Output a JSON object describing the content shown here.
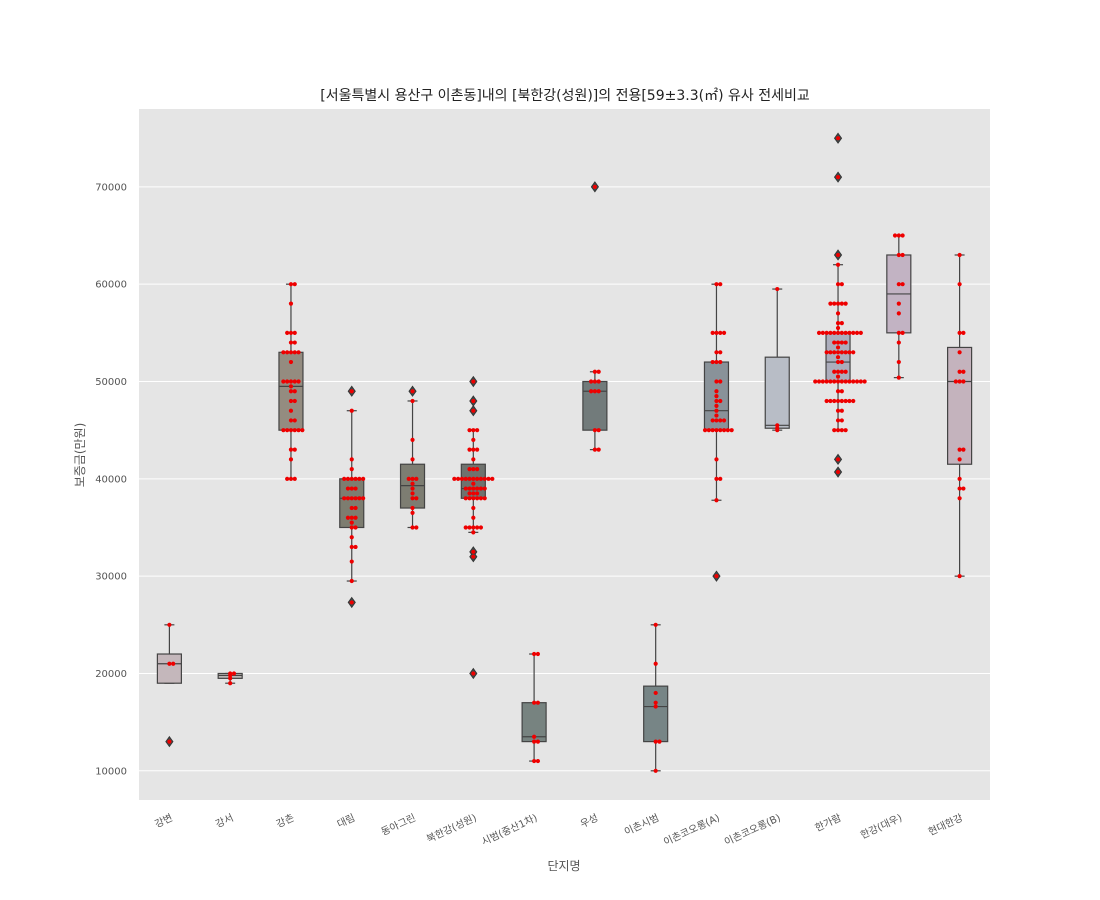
{
  "chart_data": {
    "type": "box",
    "title": "[서울특별시 용산구 이촌동]내의 [북한강(성원)]의 전용[59±3.3(㎡) 유사 전세비교",
    "xlabel": "단지명",
    "ylabel": "보증금(만원)",
    "ylim": [
      7000,
      78000
    ],
    "yticks": [
      10000,
      20000,
      30000,
      40000,
      50000,
      60000,
      70000
    ],
    "grid": true,
    "colors": {
      "background": "#e5e5e5",
      "grid": "#ffffff",
      "point": "#ee0000",
      "whisker": "#444444"
    },
    "categories": [
      "강변",
      "강서",
      "강촌",
      "대림",
      "동아그린",
      "북한강(성원)",
      "시범(중산1차)",
      "우성",
      "이촌시범",
      "이촌코오롱(A)",
      "이촌코오롱(B)",
      "한가람",
      "한강(대우)",
      "현대한강"
    ],
    "boxes": [
      {
        "q1": 19000,
        "median": 21000,
        "q3": 22000,
        "whisker_low": 19000,
        "whisker_high": 25000,
        "outliers": [
          13000
        ],
        "color": "#c4b7bb",
        "points": [
          25000,
          21000,
          21000,
          13000
        ]
      },
      {
        "q1": 19500,
        "median": 19800,
        "q3": 20000,
        "whisker_low": 19000,
        "whisker_high": 20000,
        "outliers": [],
        "color": "#bbb6b4",
        "points": [
          20000,
          20000,
          19800,
          19500,
          19000
        ]
      },
      {
        "q1": 45000,
        "median": 49500,
        "q3": 53000,
        "whisker_low": 40000,
        "whisker_high": 60000,
        "outliers": [],
        "color": "#948c80",
        "points": [
          60000,
          60000,
          58000,
          55000,
          55000,
          55000,
          54000,
          54000,
          53000,
          53000,
          53000,
          53000,
          53000,
          52000,
          50000,
          50000,
          50000,
          50000,
          50000,
          49500,
          49000,
          49000,
          48000,
          48000,
          47000,
          46000,
          46000,
          45000,
          45000,
          45000,
          45000,
          45000,
          45000,
          43000,
          43000,
          42000,
          40000,
          40000,
          40000
        ]
      },
      {
        "q1": 35000,
        "median": 38000,
        "q3": 40000,
        "whisker_low": 29500,
        "whisker_high": 47000,
        "outliers": [
          49000,
          27300
        ],
        "color": "#7d7d70",
        "points": [
          49000,
          47000,
          42000,
          41000,
          40000,
          40000,
          40000,
          40000,
          40000,
          40000,
          39000,
          39000,
          39000,
          38000,
          38000,
          38000,
          38000,
          38000,
          38000,
          37000,
          37000,
          36000,
          36000,
          36000,
          35500,
          35000,
          35000,
          34000,
          33000,
          33000,
          31500,
          29500,
          27300
        ]
      },
      {
        "q1": 37000,
        "median": 39300,
        "q3": 41500,
        "whisker_low": 35000,
        "whisker_high": 48000,
        "outliers": [
          49000
        ],
        "color": "#7d7d72",
        "points": [
          49000,
          48000,
          44000,
          42000,
          40000,
          40000,
          40000,
          39500,
          39000,
          38500,
          38000,
          38000,
          37000,
          36500,
          35000,
          35000
        ]
      },
      {
        "q1": 38000,
        "median": 39000,
        "q3": 41500,
        "whisker_low": 34500,
        "whisker_high": 45000,
        "outliers": [
          50000,
          48000,
          47000,
          32500,
          32000,
          20000
        ],
        "color": "#6f726e",
        "points": [
          50000,
          48000,
          47000,
          45000,
          45000,
          45000,
          44000,
          43000,
          43000,
          43000,
          42000,
          41000,
          41000,
          41000,
          40000,
          40000,
          40000,
          40000,
          40000,
          40000,
          40000,
          40000,
          40000,
          40000,
          40000,
          39500,
          39000,
          39000,
          39000,
          39000,
          39000,
          39000,
          38500,
          38500,
          38500,
          38000,
          38000,
          38000,
          38000,
          38000,
          38000,
          37000,
          36000,
          35000,
          35000,
          35000,
          35000,
          35000,
          34500,
          32500,
          32000,
          20000
        ]
      },
      {
        "q1": 13000,
        "median": 13500,
        "q3": 17000,
        "whisker_low": 11000,
        "whisker_high": 22000,
        "outliers": [],
        "color": "#778380",
        "points": [
          22000,
          22000,
          17000,
          17000,
          13500,
          13000,
          13000,
          11000,
          11000
        ]
      },
      {
        "q1": 45000,
        "median": 49000,
        "q3": 50000,
        "whisker_low": 43000,
        "whisker_high": 51000,
        "outliers": [
          70000
        ],
        "color": "#727b7b",
        "points": [
          70000,
          51000,
          51000,
          50000,
          50000,
          50000,
          49000,
          49000,
          49000,
          45000,
          45000,
          43000,
          43000
        ]
      },
      {
        "q1": 13000,
        "median": 16600,
        "q3": 18700,
        "whisker_low": 10000,
        "whisker_high": 25000,
        "outliers": [],
        "color": "#778586",
        "points": [
          25000,
          21000,
          18000,
          17000,
          16600,
          13000,
          13000,
          10000
        ]
      },
      {
        "q1": 45000,
        "median": 47000,
        "q3": 52000,
        "whisker_low": 37800,
        "whisker_high": 60000,
        "outliers": [
          30000
        ],
        "color": "#899299",
        "points": [
          60000,
          60000,
          55000,
          55000,
          55000,
          55000,
          53000,
          53000,
          52000,
          52000,
          52000,
          50000,
          50000,
          49000,
          48500,
          48000,
          48000,
          47500,
          47000,
          46500,
          46000,
          46000,
          46000,
          46000,
          45000,
          45000,
          45000,
          45000,
          45000,
          45000,
          45000,
          45000,
          42000,
          40000,
          40000,
          37800,
          30000
        ]
      },
      {
        "q1": 45200,
        "median": 45500,
        "q3": 52500,
        "whisker_low": 45000,
        "whisker_high": 59500,
        "outliers": [],
        "color": "#b8bdc6",
        "points": [
          59500,
          45500,
          45200,
          45000
        ]
      },
      {
        "q1": 50000,
        "median": 52000,
        "q3": 55000,
        "whisker_low": 45000,
        "whisker_high": 62000,
        "outliers": [
          75000,
          71000,
          63000,
          42000,
          40700
        ],
        "color": "#acadbc",
        "points": [
          75000,
          71000,
          63000,
          62000,
          60000,
          60000,
          58000,
          58000,
          58000,
          58000,
          58000,
          57000,
          56000,
          56000,
          55500,
          55000,
          55000,
          55000,
          55000,
          55000,
          55000,
          55000,
          55000,
          55000,
          55000,
          55000,
          55000,
          54000,
          54000,
          54000,
          54000,
          53500,
          53000,
          53000,
          53000,
          53000,
          53000,
          53000,
          53000,
          53000,
          52500,
          52000,
          52000,
          51000,
          51000,
          51000,
          51000,
          50500,
          50000,
          50000,
          50000,
          50000,
          50000,
          50000,
          50000,
          50000,
          50000,
          50000,
          50000,
          50000,
          50000,
          50000,
          49000,
          49000,
          48000,
          48000,
          48000,
          48000,
          48000,
          48000,
          48000,
          48000,
          47000,
          47000,
          46000,
          46000,
          45000,
          45000,
          45000,
          45000,
          42000,
          40700
        ]
      },
      {
        "q1": 55000,
        "median": 59000,
        "q3": 63000,
        "whisker_low": 50400,
        "whisker_high": 65000,
        "outliers": [],
        "color": "#c2b3c3",
        "points": [
          65000,
          65000,
          65000,
          63000,
          63000,
          60000,
          60000,
          58000,
          57000,
          55000,
          55000,
          54000,
          52000,
          50400
        ]
      },
      {
        "q1": 41500,
        "median": 50000,
        "q3": 53500,
        "whisker_low": 30000,
        "whisker_high": 63000,
        "outliers": [],
        "color": "#c4b3bd",
        "points": [
          63000,
          60000,
          55000,
          55000,
          53000,
          51000,
          51000,
          50000,
          50000,
          50000,
          43000,
          43000,
          42000,
          40000,
          39000,
          39000,
          38000,
          30000
        ]
      }
    ]
  }
}
